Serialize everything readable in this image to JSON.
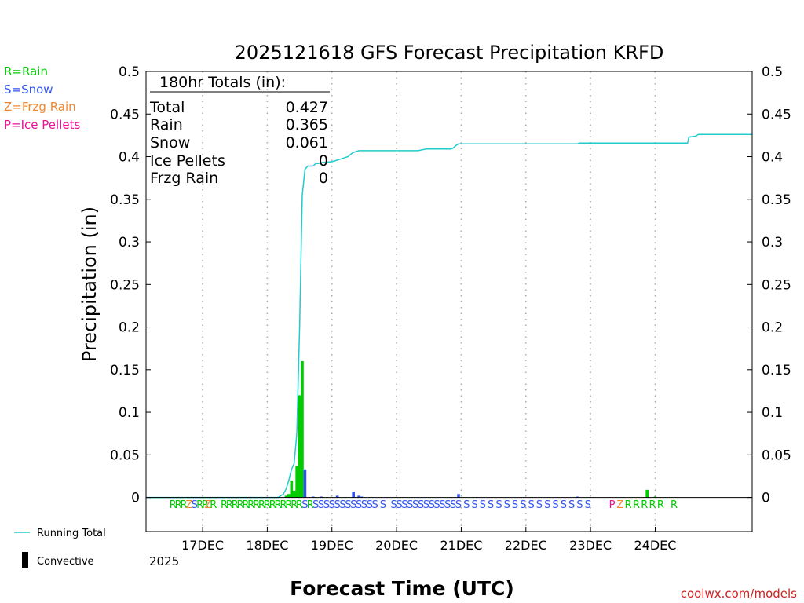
{
  "chart_data": {
    "type": "bar",
    "title": "2025121618 GFS Forecast Precipitation KRFD",
    "ylabel": "Precipitation (in)",
    "xlabel": "Forecast Time (UTC)",
    "ylim": [
      -0.04,
      0.5
    ],
    "xlim_hours": [
      -15,
      210
    ],
    "yticks": [
      0,
      0.05,
      0.1,
      0.15,
      0.2,
      0.25,
      0.3,
      0.35,
      0.4,
      0.45,
      0.5
    ],
    "ytick_labels": [
      "0",
      "0.05",
      "0.1",
      "0.15",
      "0.2",
      "0.25",
      "0.3",
      "0.35",
      "0.4",
      "0.45",
      "0.5"
    ],
    "day_ticks": [
      {
        "hour": 6,
        "label": "17DEC"
      },
      {
        "hour": 30,
        "label": "18DEC"
      },
      {
        "hour": 54,
        "label": "19DEC"
      },
      {
        "hour": 78,
        "label": "20DEC"
      },
      {
        "hour": 102,
        "label": "21DEC"
      },
      {
        "hour": 126,
        "label": "22DEC"
      },
      {
        "hour": 150,
        "label": "23DEC"
      },
      {
        "hour": 174,
        "label": "24DEC"
      }
    ],
    "year_label": "2025",
    "legend": [
      {
        "label": "R=Rain",
        "color": "#00cc00"
      },
      {
        "label": "S=Snow",
        "color": "#3355ee"
      },
      {
        "label": "Z=Frzg Rain",
        "color": "#ee8833"
      },
      {
        "label": "P=Ice Pellets",
        "color": "#ee1199"
      }
    ],
    "series_legend": {
      "running_total": "Running Total",
      "convective": "Convective"
    },
    "totals": {
      "header": "180hr Totals (in):",
      "rows": [
        {
          "label": "Total",
          "value": "0.427"
        },
        {
          "label": "Rain",
          "value": "0.365"
        },
        {
          "label": "Snow",
          "value": "0.061"
        },
        {
          "label": "Ice Pellets",
          "value": "0"
        },
        {
          "label": "Frzg Rain",
          "value": "0"
        }
      ]
    },
    "bars": [
      {
        "hour": 37,
        "value": 0.002,
        "type": "R"
      },
      {
        "hour": 38,
        "value": 0.004,
        "type": "R"
      },
      {
        "hour": 39,
        "value": 0.02,
        "type": "R"
      },
      {
        "hour": 40,
        "value": 0.008,
        "type": "R"
      },
      {
        "hour": 41,
        "value": 0.037,
        "type": "R"
      },
      {
        "hour": 42,
        "value": 0.12,
        "type": "R"
      },
      {
        "hour": 43,
        "value": 0.16,
        "type": "R"
      },
      {
        "hour": 44,
        "value": 0.033,
        "type": "S"
      },
      {
        "hour": 47,
        "value": 0.001,
        "type": "S"
      },
      {
        "hour": 50,
        "value": 0.001,
        "type": "S"
      },
      {
        "hour": 56,
        "value": 0.002,
        "type": "S"
      },
      {
        "hour": 62,
        "value": 0.007,
        "type": "S"
      },
      {
        "hour": 64,
        "value": 0.002,
        "type": "S"
      },
      {
        "hour": 65,
        "value": 0.001,
        "type": "S"
      },
      {
        "hour": 101,
        "value": 0.004,
        "type": "S"
      },
      {
        "hour": 145,
        "value": 0.001,
        "type": "S"
      },
      {
        "hour": 171,
        "value": 0.009,
        "type": "R"
      },
      {
        "hour": 174,
        "value": 0.001,
        "type": "R"
      }
    ],
    "running_total": [
      [
        -15,
        0
      ],
      [
        34,
        0
      ],
      [
        36,
        0.004
      ],
      [
        37,
        0.01
      ],
      [
        38,
        0.02
      ],
      [
        39,
        0.033
      ],
      [
        40,
        0.04
      ],
      [
        41,
        0.076
      ],
      [
        42,
        0.2
      ],
      [
        43,
        0.355
      ],
      [
        44,
        0.385
      ],
      [
        45,
        0.389
      ],
      [
        47,
        0.389
      ],
      [
        48,
        0.392
      ],
      [
        49,
        0.392
      ],
      [
        50,
        0.393
      ],
      [
        54,
        0.394
      ],
      [
        56,
        0.396
      ],
      [
        58,
        0.398
      ],
      [
        60,
        0.4
      ],
      [
        61,
        0.403
      ],
      [
        62,
        0.405
      ],
      [
        64,
        0.407
      ],
      [
        66,
        0.407
      ],
      [
        86,
        0.407
      ],
      [
        89,
        0.409
      ],
      [
        98,
        0.409
      ],
      [
        99,
        0.41
      ],
      [
        100,
        0.413
      ],
      [
        101,
        0.415
      ],
      [
        145,
        0.415
      ],
      [
        146,
        0.416
      ],
      [
        186,
        0.416
      ],
      [
        186.5,
        0.423
      ],
      [
        189,
        0.424
      ],
      [
        190,
        0.426
      ],
      [
        210,
        0.426
      ]
    ],
    "type_row": [
      {
        "hour": -5,
        "t": "R"
      },
      {
        "hour": -3,
        "t": "R"
      },
      {
        "hour": -1,
        "t": "R"
      },
      {
        "hour": 1,
        "t": "Z"
      },
      {
        "hour": 3,
        "t": "S"
      },
      {
        "hour": 5,
        "t": "R"
      },
      {
        "hour": 7,
        "t": "R"
      },
      {
        "hour": 8,
        "t": "Z"
      },
      {
        "hour": 10,
        "t": "R"
      },
      {
        "hour": 14,
        "t": "R"
      },
      {
        "hour": 16,
        "t": "R"
      },
      {
        "hour": 18,
        "t": "R"
      },
      {
        "hour": 20,
        "t": "R"
      },
      {
        "hour": 22,
        "t": "R"
      },
      {
        "hour": 24,
        "t": "R"
      },
      {
        "hour": 26,
        "t": "R"
      },
      {
        "hour": 28,
        "t": "R"
      },
      {
        "hour": 30,
        "t": "R"
      },
      {
        "hour": 32,
        "t": "R"
      },
      {
        "hour": 34,
        "t": "R"
      },
      {
        "hour": 36,
        "t": "R"
      },
      {
        "hour": 38,
        "t": "R"
      },
      {
        "hour": 40,
        "t": "R"
      },
      {
        "hour": 42,
        "t": "R"
      },
      {
        "hour": 44,
        "t": "S"
      },
      {
        "hour": 46,
        "t": "R"
      },
      {
        "hour": 48,
        "t": "S"
      },
      {
        "hour": 50,
        "t": "S"
      },
      {
        "hour": 52,
        "t": "S"
      },
      {
        "hour": 54,
        "t": "S"
      },
      {
        "hour": 56,
        "t": "S"
      },
      {
        "hour": 58,
        "t": "S"
      },
      {
        "hour": 60,
        "t": "S"
      },
      {
        "hour": 62,
        "t": "S"
      },
      {
        "hour": 64,
        "t": "S"
      },
      {
        "hour": 66,
        "t": "S"
      },
      {
        "hour": 68,
        "t": "S"
      },
      {
        "hour": 70,
        "t": "S"
      },
      {
        "hour": 73,
        "t": "S"
      },
      {
        "hour": 77,
        "t": "S"
      },
      {
        "hour": 79,
        "t": "S"
      },
      {
        "hour": 81,
        "t": "S"
      },
      {
        "hour": 83,
        "t": "S"
      },
      {
        "hour": 85,
        "t": "S"
      },
      {
        "hour": 87,
        "t": "S"
      },
      {
        "hour": 89,
        "t": "S"
      },
      {
        "hour": 91,
        "t": "S"
      },
      {
        "hour": 93,
        "t": "S"
      },
      {
        "hour": 95,
        "t": "S"
      },
      {
        "hour": 97,
        "t": "S"
      },
      {
        "hour": 99,
        "t": "S"
      },
      {
        "hour": 101,
        "t": "S"
      },
      {
        "hour": 104,
        "t": "S"
      },
      {
        "hour": 107,
        "t": "S"
      },
      {
        "hour": 110,
        "t": "S"
      },
      {
        "hour": 113,
        "t": "S"
      },
      {
        "hour": 116,
        "t": "S"
      },
      {
        "hour": 119,
        "t": "S"
      },
      {
        "hour": 122,
        "t": "S"
      },
      {
        "hour": 125,
        "t": "S"
      },
      {
        "hour": 128,
        "t": "S"
      },
      {
        "hour": 131,
        "t": "S"
      },
      {
        "hour": 134,
        "t": "S"
      },
      {
        "hour": 137,
        "t": "S"
      },
      {
        "hour": 140,
        "t": "S"
      },
      {
        "hour": 143,
        "t": "S"
      },
      {
        "hour": 146,
        "t": "S"
      },
      {
        "hour": 149,
        "t": "S"
      },
      {
        "hour": 158,
        "t": "P"
      },
      {
        "hour": 161,
        "t": "Z"
      },
      {
        "hour": 164,
        "t": "R"
      },
      {
        "hour": 167,
        "t": "R"
      },
      {
        "hour": 170,
        "t": "R"
      },
      {
        "hour": 173,
        "t": "R"
      },
      {
        "hour": 176,
        "t": "R"
      },
      {
        "hour": 181,
        "t": "R"
      }
    ]
  },
  "colors": {
    "rain": "#00cc00",
    "snow": "#3355ee",
    "frzg": "#ee8833",
    "ice": "#ee1199",
    "running_total": "#22cccc",
    "axis": "#000000",
    "grid": "#aaaaaa",
    "credit": "#cc2222"
  },
  "credit": "coolwx.com/models"
}
